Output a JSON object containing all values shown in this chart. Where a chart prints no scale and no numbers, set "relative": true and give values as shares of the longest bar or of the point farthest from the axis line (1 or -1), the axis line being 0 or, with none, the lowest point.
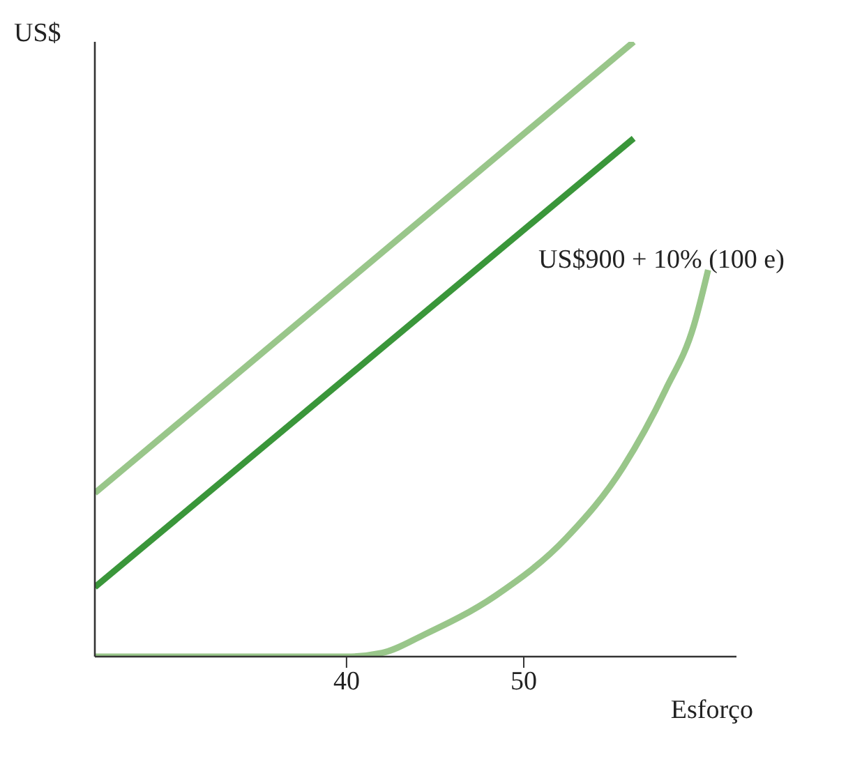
{
  "chart_data": {
    "type": "line",
    "relative": true,
    "xlabel": "Esforço",
    "ylabel": "US$",
    "xlim": [
      25.8,
      62
    ],
    "xticks": [
      40,
      50
    ],
    "grid": false,
    "legend": false,
    "marker": "none",
    "line_style": "solid",
    "annotations": [
      "US$900 + 10% (100 e)"
    ],
    "series": [
      {
        "color": "#99c68a",
        "x": [
          25.8,
          56.2
        ],
        "values": [
          0.266,
          1
        ]
      },
      {
        "color": "#3a963a",
        "x": [
          25.8,
          56.2
        ],
        "values": [
          0.113,
          0.843
        ]
      },
      {
        "color": "#99c68a",
        "x": [
          25.8,
          40,
          42,
          44.4,
          48.4,
          52.4,
          55.6,
          58,
          59.6,
          60.4
        ],
        "values": [
          0,
          0,
          0.006,
          0.036,
          0.099,
          0.193,
          0.308,
          0.434,
          0.539,
          0.629
        ]
      }
    ]
  }
}
